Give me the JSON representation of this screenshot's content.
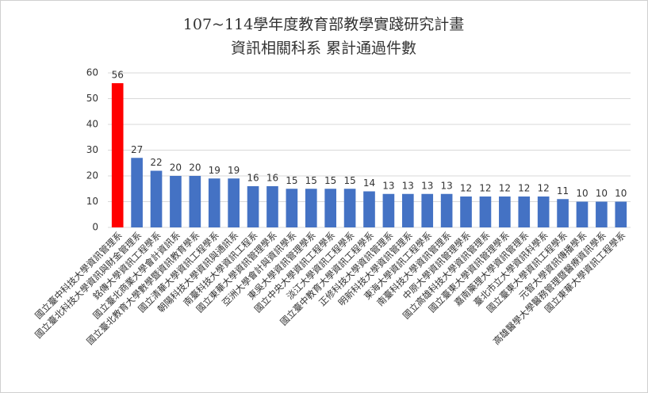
{
  "chart_data": {
    "type": "bar",
    "title": "107~114學年度教育部教學實踐研究計畫",
    "subtitle": "資訊相關科系 累計通過件數",
    "categories": [
      "國立臺中科技大學資訊管理系",
      "國立臺北科技大學資訊與財金管理系",
      "銘傳大學資訊工程學系",
      "國立臺北商業大學會計資訊系",
      "國立臺北教育大學數學暨資訊教育學系",
      "國立清華大學資訊工程學系",
      "朝陽科技大學資訊與通訊系",
      "南臺科技大學資訊工程系",
      "國立東華大學資訊管理學系",
      "亞洲大學會計與資訊學系",
      "東吳大學資訊管理學系",
      "國立中央大學資訊工程學系",
      "淡江大學資訊工程學系",
      "國立臺中教育大學資訊工程學系",
      "正修科技大學資訊管理系",
      "明新科技大學資訊管理系",
      "東海大學資訊工程學系",
      "南臺科技大學資訊管理系",
      "中原大學資訊管理學系",
      "國立高雄科技大學資訊管理系",
      "國立臺東大學資訊管理學系",
      "嘉南藥理大學資訊管理系",
      "臺北市立大學資訊科學系",
      "國立臺東大學資訊工程學系",
      "元智大學資訊傳播學系",
      "高雄醫學大學醫務管理暨醫療資訊學系",
      "國立東華大學資訊工程學系"
    ],
    "values": [
      56,
      27,
      22,
      20,
      20,
      19,
      19,
      16,
      16,
      15,
      15,
      15,
      15,
      14,
      13,
      13,
      13,
      13,
      12,
      12,
      12,
      12,
      12,
      11,
      10,
      10,
      10
    ],
    "colors": [
      "#ff0000",
      "#4472c4",
      "#4472c4",
      "#4472c4",
      "#4472c4",
      "#4472c4",
      "#4472c4",
      "#4472c4",
      "#4472c4",
      "#4472c4",
      "#4472c4",
      "#4472c4",
      "#4472c4",
      "#4472c4",
      "#4472c4",
      "#4472c4",
      "#4472c4",
      "#4472c4",
      "#4472c4",
      "#4472c4",
      "#4472c4",
      "#4472c4",
      "#4472c4",
      "#4472c4",
      "#4472c4",
      "#4472c4",
      "#4472c4"
    ],
    "ylim": [
      0,
      60
    ],
    "yticks": [
      0,
      10,
      20,
      30,
      40,
      50,
      60
    ],
    "grid": true
  }
}
